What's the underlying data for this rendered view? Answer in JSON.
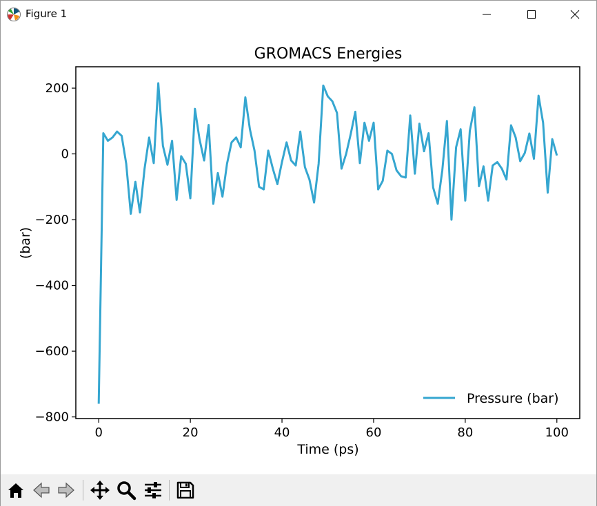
{
  "window": {
    "title": "Figure 1",
    "app_icon": "matplotlib-logo-icon",
    "controls": [
      "minimize-icon",
      "maximize-icon",
      "close-icon"
    ]
  },
  "toolbar": {
    "buttons": [
      {
        "name": "home-button",
        "icon": "home-icon"
      },
      {
        "name": "back-button",
        "icon": "back-arrow-icon"
      },
      {
        "name": "forward-button",
        "icon": "forward-arrow-icon"
      },
      {
        "name": "pan-button",
        "icon": "pan-move-icon"
      },
      {
        "name": "zoom-button",
        "icon": "zoom-magnifier-icon"
      },
      {
        "name": "configure-subplots-button",
        "icon": "sliders-icon"
      },
      {
        "name": "save-button",
        "icon": "save-floppy-icon"
      }
    ]
  },
  "chart_data": {
    "type": "line",
    "title": "GROMACS Energies",
    "xlabel": "Time (ps)",
    "ylabel": "(bar)",
    "xlim": [
      -5,
      105
    ],
    "ylim": [
      -805,
      265
    ],
    "xticks": [
      0,
      20,
      40,
      60,
      80,
      100
    ],
    "yticks": [
      200,
      0,
      -200,
      -400,
      -600,
      -800
    ],
    "grid": false,
    "legend_position": "lower right",
    "series": [
      {
        "name": "Pressure (bar)",
        "color": "#35a6d0",
        "x": [
          0,
          1,
          2,
          3,
          4,
          5,
          6,
          7,
          8,
          9,
          10,
          11,
          12,
          13,
          14,
          15,
          16,
          17,
          18,
          19,
          20,
          21,
          22,
          23,
          24,
          25,
          26,
          27,
          28,
          29,
          30,
          31,
          32,
          33,
          34,
          35,
          36,
          37,
          38,
          39,
          40,
          41,
          42,
          43,
          44,
          45,
          46,
          47,
          48,
          49,
          50,
          51,
          52,
          53,
          54,
          55,
          56,
          57,
          58,
          59,
          60,
          61,
          62,
          63,
          64,
          65,
          66,
          67,
          68,
          69,
          70,
          71,
          72,
          73,
          74,
          75,
          76,
          77,
          78,
          79,
          80,
          81,
          82,
          83,
          84,
          85,
          86,
          87,
          88,
          89,
          90,
          91,
          92,
          93,
          94,
          95,
          96,
          97,
          98,
          99,
          100
        ],
        "values": [
          -760,
          63,
          40,
          50,
          68,
          55,
          -30,
          -182,
          -85,
          -178,
          -45,
          50,
          -28,
          215,
          25,
          -33,
          40,
          -140,
          -7,
          -30,
          -135,
          137,
          45,
          -20,
          88,
          -152,
          -58,
          -130,
          -30,
          35,
          50,
          20,
          172,
          75,
          10,
          -100,
          -108,
          10,
          -45,
          -92,
          -25,
          35,
          -20,
          -35,
          68,
          -40,
          -78,
          -148,
          -30,
          208,
          175,
          160,
          125,
          -45,
          0,
          60,
          128,
          -28,
          95,
          40,
          95,
          -108,
          -82,
          10,
          0,
          -50,
          -68,
          -72,
          117,
          -60,
          92,
          8,
          63,
          -102,
          -152,
          -50,
          100,
          -200,
          20,
          75,
          -142,
          70,
          142,
          -98,
          -38,
          -142,
          -35,
          -25,
          -45,
          -78,
          87,
          50,
          -22,
          3,
          62,
          -15,
          177,
          95,
          -118,
          45,
          -5
        ]
      }
    ]
  }
}
